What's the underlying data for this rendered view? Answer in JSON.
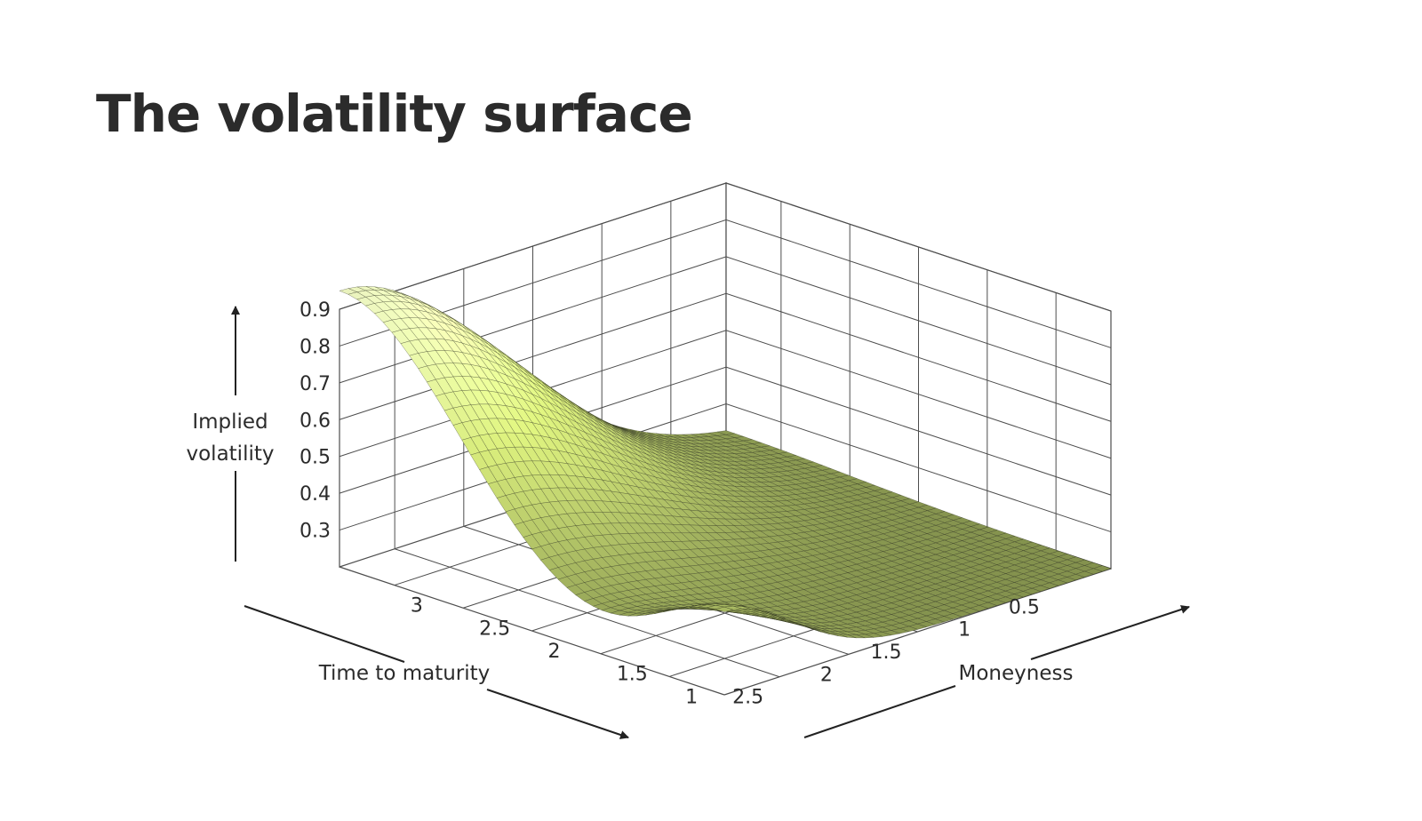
{
  "title": "The volatility surface",
  "chart_data": {
    "type": "surface",
    "title": "The volatility surface",
    "z_label_lines": [
      "Implied",
      "volatility"
    ],
    "x_label": "Time to maturity",
    "y_label": "Moneyness",
    "z_ticks": [
      0.3,
      0.4,
      0.5,
      0.6,
      0.7,
      0.8,
      0.9
    ],
    "x_ticks": [
      0.5,
      1,
      1.5,
      2,
      2.5
    ],
    "y_ticks": [
      1,
      1.5,
      2,
      2.5,
      3
    ],
    "x_range": [
      0.1,
      2.9
    ],
    "y_range": [
      0.6,
      3.4
    ],
    "z_range": [
      0.2,
      0.9
    ],
    "grid": true,
    "surface_color": "#b5c86c",
    "peak_color": "#e6f2a8",
    "mesh_color": "#2a2e1c",
    "corner_values": {
      "short_maturity_high_moneyness": 0.95,
      "short_maturity_low_moneyness": 0.42,
      "long_maturity_low_moneyness": 0.2,
      "long_maturity_high_moneyness": 0.2
    }
  }
}
